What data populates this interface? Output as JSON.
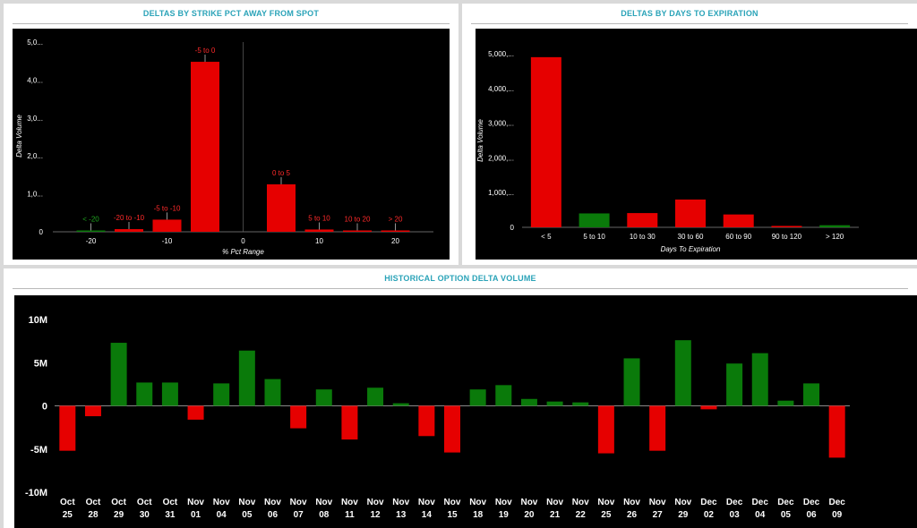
{
  "colors": {
    "positive": "#0a7a0a",
    "negative": "#e60000",
    "plot_bg": "#000000",
    "title": "#2aa3b8"
  },
  "panels": {
    "strike": {
      "title": "DELTAS BY STRIKE PCT AWAY FROM SPOT"
    },
    "days": {
      "title": "DELTAS BY DAYS TO EXPIRATION"
    },
    "history": {
      "title": "HISTORICAL OPTION DELTA VOLUME"
    }
  },
  "chart_data": [
    {
      "id": "strike",
      "type": "bar",
      "title": "DELTAS BY STRIKE PCT AWAY FROM SPOT",
      "xlabel": "% Pct Range",
      "ylabel": "Delta Volume",
      "xlim": [
        -25,
        25
      ],
      "ylim": [
        0,
        5000
      ],
      "xticks": [
        -20,
        -10,
        0,
        10,
        20
      ],
      "xtick_labels": [
        "-20",
        "-10",
        "0",
        "10",
        "20"
      ],
      "yticks": [
        0,
        1000,
        2000,
        3000,
        4000,
        5000
      ],
      "ytick_labels": [
        "0",
        "1,0...",
        "2,0...",
        "3,0...",
        "4,0...",
        "5,0..."
      ],
      "bars": [
        {
          "label": "< -20",
          "x": -20,
          "value": 30,
          "color": "#0a7a0a"
        },
        {
          "label": "-20 to -10",
          "x": -15,
          "value": 70,
          "color": "#e60000"
        },
        {
          "label": "-5 to -10",
          "x": -10,
          "value": 320,
          "color": "#e60000"
        },
        {
          "label": "-5 to 0",
          "x": -5,
          "value": 4480,
          "color": "#e60000"
        },
        {
          "label": "0 to 5",
          "x": 5,
          "value": 1250,
          "color": "#e60000"
        },
        {
          "label": "5 to 10",
          "x": 10,
          "value": 60,
          "color": "#e60000"
        },
        {
          "label": "10 to 20",
          "x": 15,
          "value": 20,
          "color": "#e60000"
        },
        {
          "label": "> 20",
          "x": 20,
          "value": 20,
          "color": "#e60000"
        }
      ]
    },
    {
      "id": "days",
      "type": "bar",
      "title": "DELTAS BY DAYS TO EXPIRATION",
      "xlabel": "Days To Expiration",
      "ylabel": "Delta Volume",
      "ylim": [
        0,
        5000
      ],
      "yticks": [
        0,
        1000,
        2000,
        3000,
        4000,
        5000
      ],
      "ytick_labels": [
        "0",
        "1,000,...",
        "2,000,...",
        "3,000,...",
        "4,000,...",
        "5,000,..."
      ],
      "categories": [
        "< 5",
        "5 to 10",
        "10 to 30",
        "30 to 60",
        "60 to 90",
        "90 to 120",
        "> 120"
      ],
      "values": [
        4900,
        400,
        410,
        800,
        370,
        40,
        60
      ],
      "colors": [
        "#e60000",
        "#0a7a0a",
        "#e60000",
        "#e60000",
        "#e60000",
        "#e60000",
        "#0a7a0a"
      ]
    },
    {
      "id": "history",
      "type": "bar",
      "title": "HISTORICAL OPTION DELTA VOLUME",
      "ylim": [
        -10,
        10
      ],
      "yunit": "M",
      "yticks": [
        -10,
        -5,
        0,
        5,
        10
      ],
      "ytick_labels": [
        "-10M",
        "-5M",
        "0",
        "5M",
        "10M"
      ],
      "categories": [
        [
          "Oct",
          "25"
        ],
        [
          "Oct",
          "28"
        ],
        [
          "Oct",
          "29"
        ],
        [
          "Oct",
          "30"
        ],
        [
          "Oct",
          "31"
        ],
        [
          "Nov",
          "01"
        ],
        [
          "Nov",
          "04"
        ],
        [
          "Nov",
          "05"
        ],
        [
          "Nov",
          "06"
        ],
        [
          "Nov",
          "07"
        ],
        [
          "Nov",
          "08"
        ],
        [
          "Nov",
          "11"
        ],
        [
          "Nov",
          "12"
        ],
        [
          "Nov",
          "13"
        ],
        [
          "Nov",
          "14"
        ],
        [
          "Nov",
          "15"
        ],
        [
          "Nov",
          "18"
        ],
        [
          "Nov",
          "19"
        ],
        [
          "Nov",
          "20"
        ],
        [
          "Nov",
          "21"
        ],
        [
          "Nov",
          "22"
        ],
        [
          "Nov",
          "25"
        ],
        [
          "Nov",
          "26"
        ],
        [
          "Nov",
          "27"
        ],
        [
          "Nov",
          "29"
        ],
        [
          "Dec",
          "02"
        ],
        [
          "Dec",
          "03"
        ],
        [
          "Dec",
          "04"
        ],
        [
          "Dec",
          "05"
        ],
        [
          "Dec",
          "06"
        ],
        [
          "Dec",
          "09"
        ]
      ],
      "values": [
        -5.2,
        -1.2,
        7.3,
        2.7,
        2.7,
        -1.6,
        2.6,
        6.4,
        3.1,
        -2.6,
        1.9,
        -3.9,
        2.1,
        0.3,
        -3.5,
        -5.4,
        1.9,
        2.4,
        0.8,
        0.5,
        0.4,
        -5.5,
        5.5,
        -5.2,
        7.6,
        -0.4,
        4.9,
        6.1,
        0.6,
        2.6,
        -6.0
      ]
    }
  ]
}
